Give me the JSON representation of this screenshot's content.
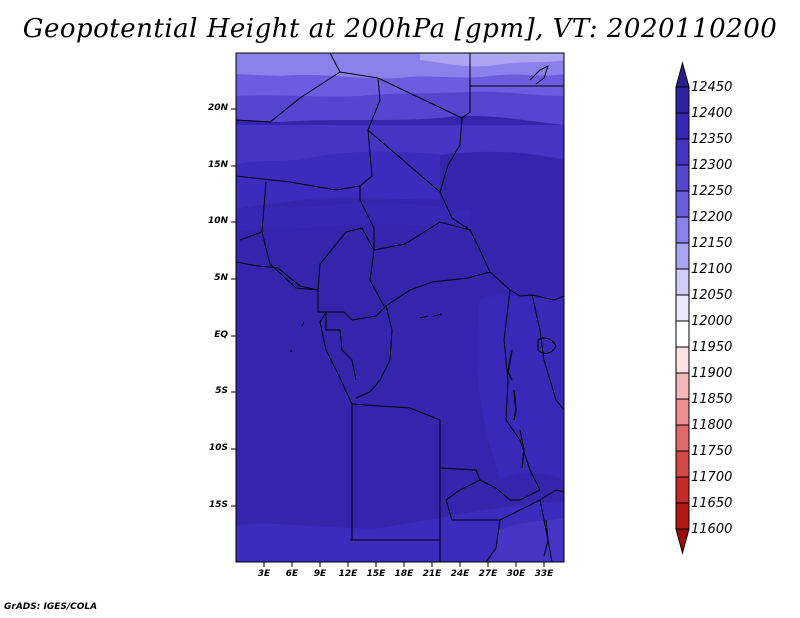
{
  "title": "Geopotential Height at 200hPa [gpm], VT: 2020110200",
  "credit": "GrADS: IGES/COLA",
  "map": {
    "lat_labels": [
      "20N",
      "15N",
      "10N",
      "5N",
      "EQ",
      "5S",
      "10S",
      "15S"
    ],
    "lon_labels": [
      "3E",
      "6E",
      "9E",
      "12E",
      "15E",
      "18E",
      "21E",
      "24E",
      "27E",
      "30E",
      "33E"
    ]
  },
  "colorbar": {
    "levels": [
      "12450",
      "12400",
      "12350",
      "12300",
      "12250",
      "12200",
      "12150",
      "12100",
      "12050",
      "12000",
      "11950",
      "11900",
      "11850",
      "11800",
      "11750",
      "11700",
      "11650",
      "11600"
    ],
    "colors": [
      "#2a1c8c",
      "#2f22a3",
      "#3628b5",
      "#4535c4",
      "#5546d0",
      "#6a5de0",
      "#8a82ec",
      "#aba6f3",
      "#cfccf8",
      "#ece9fc",
      "#ffffff",
      "#fbe2e2",
      "#f5b8b8",
      "#ec9090",
      "#e06a6a",
      "#d44848",
      "#c42a2a",
      "#b01818",
      "#9c0c0c"
    ]
  }
}
